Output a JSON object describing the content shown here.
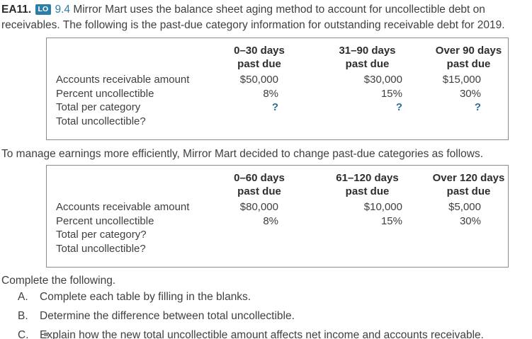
{
  "colors": {
    "accent_teal": "#2e7da6",
    "question_mark_teal": "#2a6f97",
    "body_text": "#3f4040",
    "table_border": "#8c8c8c"
  },
  "intro": {
    "exercise_id": "EA11.",
    "lo_badge_label": "LO",
    "lo_number": "9.4",
    "text": "Mirror Mart uses the balance sheet aging method to account for uncollectible debt on receivables. The following is the past-due category information for outstanding receivable debt for 2019."
  },
  "table1": {
    "headers": [
      {
        "line1": "0–30 days",
        "line2": "past due"
      },
      {
        "line1": "31–90 days",
        "line2": "past due"
      },
      {
        "line1": "Over 90 days",
        "line2": "past due"
      }
    ],
    "rows": [
      {
        "label": "Accounts receivable amount",
        "values": [
          "$50,000",
          "$30,000",
          "$15,000"
        ]
      },
      {
        "label": "Percent uncollectible",
        "values": [
          "8%",
          "15%",
          "30%"
        ]
      },
      {
        "label": "Total per category",
        "values": [
          "?",
          "?",
          "?"
        ]
      },
      {
        "label": "Total uncollectible?",
        "values": [
          "",
          "",
          ""
        ]
      }
    ]
  },
  "transition_text": "To manage earnings more efficiently, Mirror Mart decided to change past-due categories as follows.",
  "table2": {
    "headers": [
      {
        "line1": "0–60 days",
        "line2": "past due"
      },
      {
        "line1": "61–120 days",
        "line2": "past due"
      },
      {
        "line1": "Over 120 days",
        "line2": "past due"
      }
    ],
    "rows": [
      {
        "label": "Accounts receivable amount",
        "values": [
          "$80,000",
          "$10,000",
          "$5,000"
        ]
      },
      {
        "label": "Percent uncollectible",
        "values": [
          "8%",
          "15%",
          "30%"
        ]
      },
      {
        "label": "Total per category?",
        "values": [
          "",
          "",
          ""
        ]
      },
      {
        "label": "Total uncollectible?",
        "values": [
          "",
          "",
          ""
        ]
      }
    ]
  },
  "instructions": {
    "lead": "Complete the following.",
    "items": [
      {
        "letter": "A.",
        "text": "Complete each table by filling in the blanks."
      },
      {
        "letter": "B.",
        "text": "Determine the difference between total uncollectible."
      },
      {
        "letter": "C.",
        "text": "Explain how the new total uncollectible amount affects net income and accounts receivable."
      }
    ]
  }
}
